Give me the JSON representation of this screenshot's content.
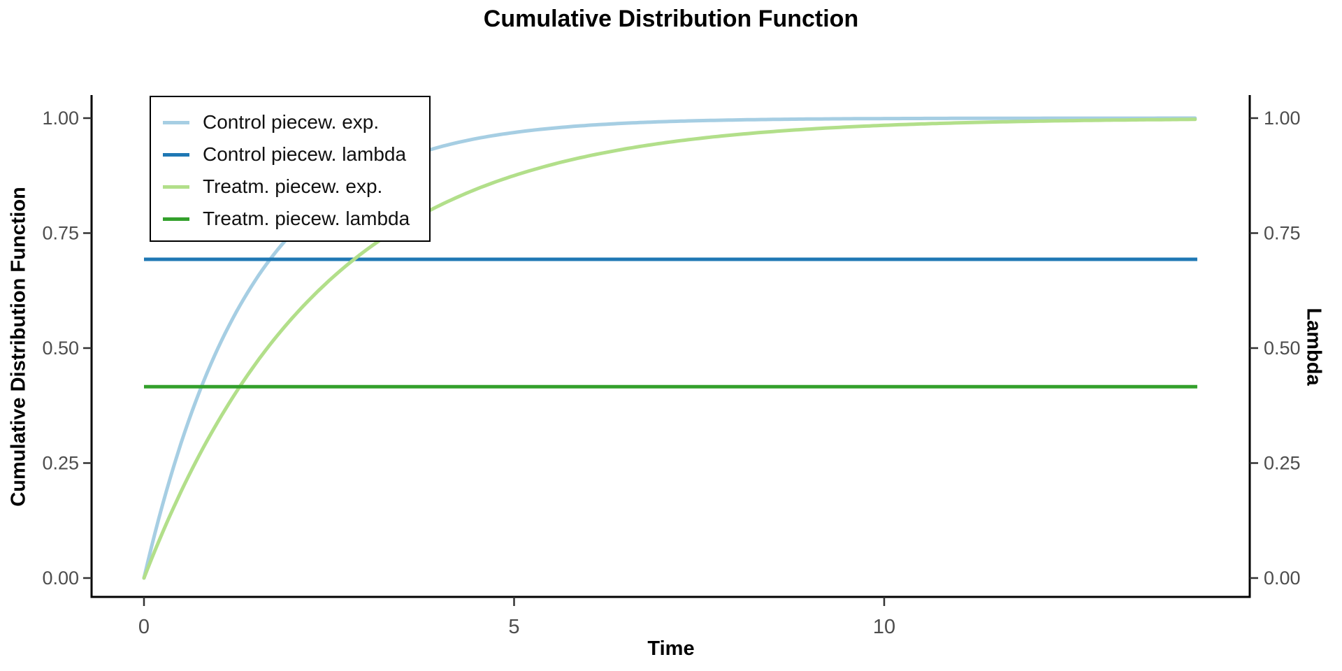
{
  "title": "Cumulative Distribution Function",
  "chart_data": {
    "type": "line",
    "title": "Cumulative Distribution Function",
    "xlabel": "Time",
    "ylabel_left": "Cumulative Distribution Function",
    "ylabel_right": "Lambda",
    "xlim": [
      0,
      14.23
    ],
    "ylim": [
      0,
      1
    ],
    "grid": false,
    "legend_position": "top-left-inside",
    "x_ticks": {
      "values": [
        0,
        5,
        10
      ],
      "labels": [
        "0",
        "5",
        "10"
      ]
    },
    "y_ticks": {
      "values": [
        0,
        0.25,
        0.5,
        0.75,
        1.0
      ],
      "labels": [
        "0.00",
        "0.25",
        "0.50",
        "0.75",
        "1.00"
      ]
    },
    "axis_text_color": "#4D4D4D",
    "axis_line_color": "#000000",
    "tick_mark_color": "#333333",
    "series": [
      {
        "name": "Control piecew. exp.",
        "kind": "cdf_exponential",
        "lambda": 0.693,
        "color": "#A6CEE3"
      },
      {
        "name": "Control piecew. lambda",
        "kind": "constant",
        "value": 0.693,
        "color": "#1F78B4"
      },
      {
        "name": "Treatm. piecew. exp.",
        "kind": "cdf_exponential",
        "lambda": 0.416,
        "color": "#B2DF8A"
      },
      {
        "name": "Treatm. piecew. lambda",
        "kind": "constant",
        "value": 0.416,
        "color": "#33A02C"
      }
    ],
    "sampled_points": {
      "t": [
        0,
        1,
        2,
        3,
        4,
        5,
        6,
        7,
        8,
        9,
        10,
        11,
        12,
        13,
        14
      ],
      "control_cdf": [
        0,
        0.5,
        0.75,
        0.875,
        0.938,
        0.969,
        0.984,
        0.992,
        0.996,
        0.998,
        0.999,
        1.0,
        1.0,
        1.0,
        1.0
      ],
      "treatment_cdf": [
        0,
        0.34,
        0.565,
        0.713,
        0.811,
        0.875,
        0.918,
        0.946,
        0.964,
        0.976,
        0.984,
        0.99,
        0.993,
        0.995,
        0.997
      ],
      "control_lambda": 0.693,
      "treatment_lambda": 0.416
    }
  }
}
